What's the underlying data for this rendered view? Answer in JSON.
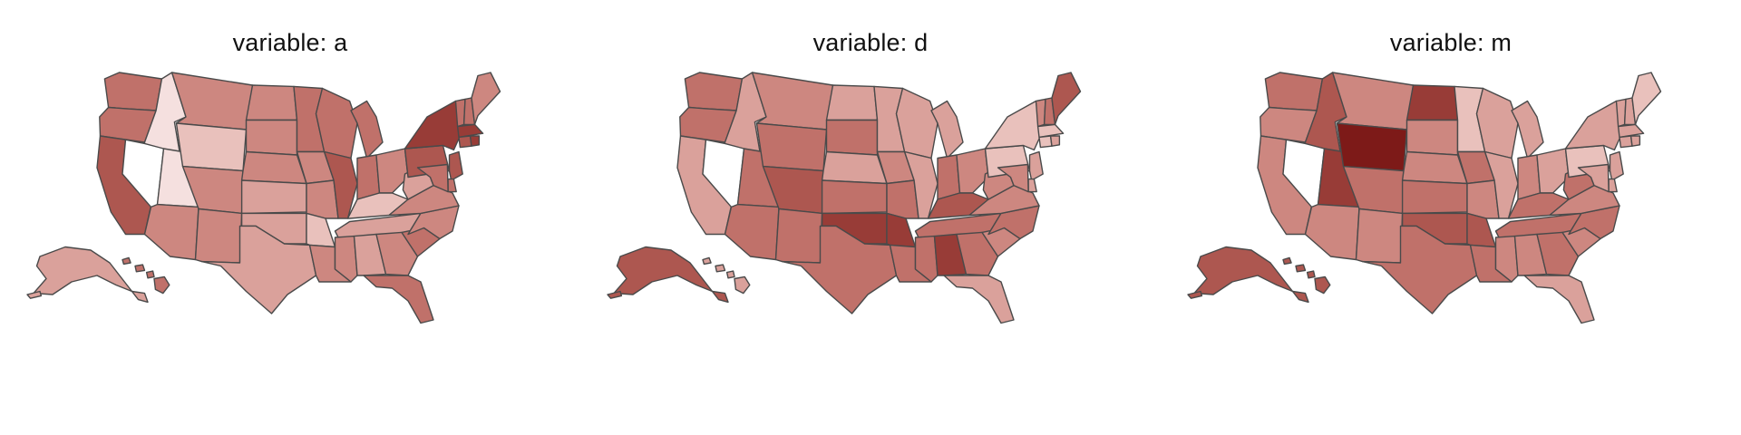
{
  "panels": [
    {
      "title": "variable: a",
      "levels": {
        "WA": 5,
        "OR": 5,
        "CA": 6,
        "ID": 1,
        "NV": 0,
        "UT": 1,
        "MT": 4,
        "WY": 2,
        "CO": 4,
        "AZ": 4,
        "NM": 4,
        "ND": 4,
        "SD": 4,
        "NE": 4,
        "KS": 3,
        "OK": 3,
        "TX": 3,
        "MN": 5,
        "IA": 4,
        "MO": 4,
        "AR": 2,
        "LA": 4,
        "WI": 5,
        "IL": 6,
        "MI": 5,
        "IN": 5,
        "OH": 4,
        "KY": 2,
        "TN": 3,
        "MS": 4,
        "AL": 3,
        "GA": 4,
        "FL": 5,
        "SC": 5,
        "NC": 4,
        "VA": 4,
        "WV": 3,
        "PA": 6,
        "NY": 7,
        "VT": 5,
        "NH": 5,
        "ME": 4,
        "MA": 7,
        "CT": 6,
        "RI": 7,
        "NJ": 6,
        "DE": 5,
        "MD": 5,
        "AK": 3,
        "HI": 5
      }
    },
    {
      "title": "variable: d",
      "levels": {
        "WA": 5,
        "OR": 5,
        "CA": 3,
        "ID": 3,
        "NV": 0,
        "UT": 5,
        "MT": 4,
        "WY": 5,
        "CO": 6,
        "AZ": 5,
        "NM": 5,
        "ND": 3,
        "SD": 5,
        "NE": 3,
        "KS": 5,
        "OK": 7,
        "TX": 5,
        "MN": 3,
        "IA": 4,
        "MO": 5,
        "AR": 7,
        "LA": 5,
        "WI": 3,
        "IL": 3,
        "MI": 3,
        "IN": 5,
        "OH": 4,
        "KY": 6,
        "TN": 5,
        "MS": 5,
        "AL": 7,
        "GA": 5,
        "FL": 3,
        "SC": 4,
        "NC": 5,
        "VA": 4,
        "WV": 4,
        "PA": 2,
        "NY": 2,
        "VT": 4,
        "NH": 5,
        "ME": 6,
        "MA": 2,
        "CT": 2,
        "RI": 3,
        "NJ": 3,
        "DE": 3,
        "MD": 4,
        "AK": 6,
        "HI": 3
      }
    },
    {
      "title": "variable: m",
      "levels": {
        "WA": 5,
        "OR": 4,
        "CA": 4,
        "ID": 6,
        "NV": 0,
        "UT": 7,
        "MT": 4,
        "WY": 8,
        "CO": 5,
        "AZ": 4,
        "NM": 4,
        "ND": 7,
        "SD": 4,
        "NE": 4,
        "KS": 5,
        "OK": 6,
        "TX": 5,
        "MN": 2,
        "IA": 5,
        "MO": 4,
        "AR": 6,
        "LA": 5,
        "WI": 3,
        "IL": 3,
        "MI": 3,
        "IN": 4,
        "OH": 3,
        "KY": 5,
        "TN": 5,
        "MS": 4,
        "AL": 4,
        "GA": 5,
        "FL": 3,
        "SC": 4,
        "NC": 5,
        "VA": 4,
        "WV": 5,
        "PA": 2,
        "NY": 3,
        "VT": 3,
        "NH": 3,
        "ME": 2,
        "MA": 3,
        "CT": 3,
        "RI": 3,
        "NJ": 3,
        "DE": 3,
        "MD": 3,
        "AK": 6,
        "HI": 6
      }
    }
  ],
  "palette": [
    "#ffffff",
    "#f5e0df",
    "#e9c1bc",
    "#daa19b",
    "#cd8780",
    "#c0716a",
    "#ad5750",
    "#983c37",
    "#7d1a18"
  ],
  "stroke_color": "#4a4a4a"
}
